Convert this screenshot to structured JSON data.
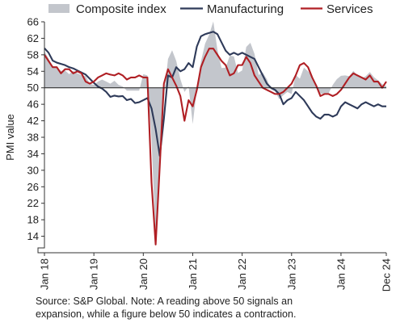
{
  "chart_data": {
    "type": "line",
    "ylabel": "PMI value",
    "ylim": [
      10,
      66
    ],
    "yticks": [
      14,
      18,
      22,
      26,
      30,
      34,
      38,
      42,
      46,
      50,
      54,
      58,
      62,
      66
    ],
    "xlim": [
      "2018-01",
      "2024-12"
    ],
    "xticks": [
      {
        "date": "2018-01",
        "label": "Jan 18"
      },
      {
        "date": "2019-01",
        "label": "Jan 19"
      },
      {
        "date": "2020-01",
        "label": "Jan 20"
      },
      {
        "date": "2021-01",
        "label": "Jan 21"
      },
      {
        "date": "2022-01",
        "label": "Jan 22"
      },
      {
        "date": "2023-01",
        "label": "Jan 23"
      },
      {
        "date": "2024-01",
        "label": "Jan 24"
      },
      {
        "date": "2024-12",
        "label": "Dec 24"
      }
    ],
    "reference_line": 50,
    "legend_position": "top",
    "start_date": "2018-01",
    "series": [
      {
        "name": "Composite index",
        "style": "area",
        "color": "#c3c6cc",
        "values": [
          58.8,
          57.1,
          55.2,
          54.9,
          54.1,
          54.2,
          53.3,
          54.1,
          53.5,
          53.1,
          52.8,
          51.0,
          50.7,
          51.5,
          52.0,
          51.5,
          51.0,
          51.7,
          50.7,
          50.3,
          49.3,
          49.3,
          49.3,
          49.3,
          53.3,
          53.0,
          37.4,
          13.6,
          30.0,
          47.7,
          57.0,
          59.1,
          56.5,
          52.1,
          49.0,
          50.4,
          41.2,
          49.6,
          56.4,
          60.7,
          62.9,
          66.1,
          59.2,
          54.8,
          54.9,
          57.8,
          57.6,
          53.6,
          54.2,
          59.9,
          60.9,
          58.2,
          53.1,
          53.7,
          52.1,
          49.6,
          49.1,
          47.2,
          48.2,
          49.0,
          48.5,
          53.1,
          52.2,
          54.9,
          54.0,
          52.8,
          50.8,
          48.6,
          48.5,
          48.7,
          50.7,
          52.1,
          52.9,
          53.0,
          52.8,
          54.1,
          53.0,
          52.3,
          52.8,
          53.8,
          52.6,
          51.8,
          50.9,
          50.4
        ]
      },
      {
        "name": "Manufacturing",
        "style": "line",
        "color": "#2e3a59",
        "values": [
          59.6,
          58.5,
          56.6,
          56.1,
          55.8,
          55.5,
          55.0,
          54.7,
          54.2,
          53.7,
          53.2,
          52.2,
          51.2,
          50.3,
          49.8,
          49.0,
          47.8,
          48.1,
          47.9,
          48.0,
          47.0,
          47.3,
          46.3,
          46.5,
          47.0,
          47.5,
          45.0,
          40.0,
          33.5,
          42.5,
          53.0,
          52.5,
          55.0,
          54.0,
          54.5,
          56.0,
          55.0,
          60.0,
          62.5,
          63.0,
          63.3,
          63.6,
          63.0,
          61.0,
          59.0,
          58.0,
          58.5,
          58.0,
          58.5,
          58.0,
          57.5,
          57.0,
          55.0,
          53.0,
          51.0,
          50.0,
          49.5,
          48.5,
          46.0,
          47.0,
          47.5,
          49.0,
          48.0,
          47.0,
          45.5,
          44.0,
          43.0,
          42.5,
          43.5,
          43.5,
          43.0,
          43.5,
          45.5,
          46.5,
          46.0,
          45.5,
          45.0,
          46.0,
          46.5,
          46.0,
          45.5,
          46.0,
          45.5,
          45.5
        ]
      },
      {
        "name": "Services",
        "style": "line",
        "color": "#b01f24",
        "values": [
          58.0,
          56.5,
          55.0,
          55.0,
          53.5,
          54.5,
          54.5,
          53.5,
          54.0,
          53.5,
          51.5,
          51.0,
          51.5,
          52.5,
          53.0,
          53.5,
          53.2,
          53.0,
          53.5,
          53.0,
          52.0,
          52.5,
          52.5,
          53.0,
          52.5,
          52.5,
          27.0,
          12.0,
          31.0,
          51.0,
          54.5,
          52.5,
          50.5,
          48.0,
          42.0,
          47.0,
          45.5,
          49.5,
          55.0,
          57.5,
          59.5,
          59.5,
          58.0,
          56.5,
          55.5,
          53.0,
          53.5,
          55.5,
          55.5,
          57.5,
          56.0,
          53.0,
          51.5,
          50.0,
          49.5,
          49.0,
          48.5,
          48.5,
          49.0,
          50.0,
          51.0,
          53.0,
          55.5,
          56.0,
          55.0,
          52.5,
          50.5,
          48.0,
          48.5,
          48.5,
          48.0,
          48.5,
          49.5,
          51.0,
          52.5,
          53.5,
          53.0,
          52.5,
          52.0,
          53.0,
          51.5,
          51.5,
          50.0,
          51.5
        ]
      }
    ]
  },
  "note": {
    "line1": "Source: S&P Global. Note: A reading above 50 signals an",
    "line2": "expansion, while a figure below 50 indicates a contraction."
  }
}
